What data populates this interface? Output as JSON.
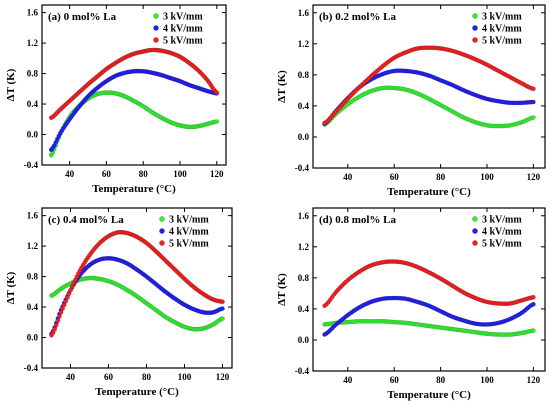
{
  "colors": {
    "3 kV/mm": "#33ee33",
    "4 kV/mm": "#2222ee",
    "5 kV/mm": "#ee2222"
  },
  "chart_data": [
    {
      "type": "scatter",
      "title": "(a) 0 mol% La",
      "xlabel": "Temperature (°C)",
      "ylabel": "ΔT (K)",
      "xlim": [
        25,
        125
      ],
      "ylim": [
        -0.4,
        1.7
      ],
      "xticks": [
        40,
        60,
        80,
        100,
        120
      ],
      "yticks": [
        -0.4,
        0.0,
        0.4,
        0.8,
        1.2,
        1.6
      ],
      "legend": "top-right",
      "series": [
        {
          "name": "3 kV/mm",
          "x": [
            30,
            35,
            40,
            45,
            50,
            55,
            60,
            65,
            70,
            75,
            80,
            85,
            90,
            95,
            100,
            105,
            110,
            115,
            120
          ],
          "y": [
            -0.27,
            0.01,
            0.23,
            0.37,
            0.47,
            0.53,
            0.55,
            0.54,
            0.5,
            0.44,
            0.37,
            0.29,
            0.22,
            0.16,
            0.12,
            0.1,
            0.11,
            0.14,
            0.17
          ]
        },
        {
          "name": "4 kV/mm",
          "x": [
            30,
            35,
            40,
            45,
            50,
            55,
            60,
            65,
            70,
            75,
            80,
            85,
            90,
            95,
            100,
            105,
            110,
            115,
            120
          ],
          "y": [
            -0.2,
            0.02,
            0.2,
            0.36,
            0.5,
            0.61,
            0.7,
            0.77,
            0.81,
            0.83,
            0.83,
            0.81,
            0.78,
            0.74,
            0.7,
            0.65,
            0.61,
            0.57,
            0.54
          ]
        },
        {
          "name": "5 kV/mm",
          "x": [
            30,
            35,
            40,
            45,
            50,
            55,
            60,
            65,
            70,
            75,
            80,
            85,
            90,
            95,
            100,
            105,
            110,
            115,
            120
          ],
          "y": [
            0.22,
            0.33,
            0.44,
            0.55,
            0.66,
            0.76,
            0.86,
            0.94,
            1.01,
            1.06,
            1.09,
            1.11,
            1.1,
            1.07,
            1.02,
            0.94,
            0.84,
            0.71,
            0.55
          ]
        }
      ]
    },
    {
      "type": "scatter",
      "title": "(b) 0.2 mol% La",
      "xlabel": "Temperature (°C)",
      "ylabel": "ΔT (K)",
      "xlim": [
        25,
        125
      ],
      "ylim": [
        -0.4,
        1.7
      ],
      "xticks": [
        40,
        60,
        80,
        100,
        120
      ],
      "yticks": [
        -0.4,
        0.0,
        0.4,
        0.8,
        1.2,
        1.6
      ],
      "legend": "top-right",
      "series": [
        {
          "name": "3 kV/mm",
          "x": [
            30,
            35,
            40,
            45,
            50,
            55,
            60,
            65,
            70,
            75,
            80,
            85,
            90,
            95,
            100,
            105,
            110,
            115,
            120
          ],
          "y": [
            0.16,
            0.3,
            0.42,
            0.52,
            0.59,
            0.63,
            0.63,
            0.61,
            0.56,
            0.49,
            0.41,
            0.33,
            0.25,
            0.19,
            0.15,
            0.14,
            0.15,
            0.19,
            0.25
          ]
        },
        {
          "name": "4 kV/mm",
          "x": [
            30,
            35,
            40,
            45,
            50,
            55,
            60,
            65,
            70,
            75,
            80,
            85,
            90,
            95,
            100,
            105,
            110,
            115,
            120
          ],
          "y": [
            0.17,
            0.34,
            0.5,
            0.64,
            0.74,
            0.81,
            0.85,
            0.85,
            0.83,
            0.79,
            0.73,
            0.67,
            0.6,
            0.54,
            0.49,
            0.46,
            0.44,
            0.44,
            0.45
          ]
        },
        {
          "name": "5 kV/mm",
          "x": [
            30,
            35,
            40,
            45,
            50,
            55,
            60,
            65,
            70,
            75,
            80,
            85,
            90,
            95,
            100,
            105,
            110,
            115,
            120
          ],
          "y": [
            0.18,
            0.33,
            0.49,
            0.64,
            0.78,
            0.91,
            1.02,
            1.09,
            1.14,
            1.15,
            1.14,
            1.11,
            1.06,
            1.0,
            0.93,
            0.85,
            0.77,
            0.69,
            0.62
          ]
        }
      ]
    },
    {
      "type": "scatter",
      "title": "(c) 0.4 mol% La",
      "xlabel": "Temperature (°C)",
      "ylabel": "ΔT (K)",
      "xlim": [
        25,
        125
      ],
      "ylim": [
        -0.4,
        1.7
      ],
      "xticks": [
        40,
        60,
        80,
        100,
        120
      ],
      "yticks": [
        -0.4,
        0.0,
        0.4,
        0.8,
        1.2,
        1.6
      ],
      "legend": "top-right",
      "series": [
        {
          "name": "3 kV/mm",
          "x": [
            30,
            35,
            40,
            45,
            50,
            55,
            60,
            65,
            70,
            75,
            80,
            85,
            90,
            95,
            100,
            105,
            110,
            115,
            120
          ],
          "y": [
            0.55,
            0.64,
            0.71,
            0.76,
            0.78,
            0.77,
            0.74,
            0.69,
            0.62,
            0.54,
            0.45,
            0.36,
            0.27,
            0.2,
            0.14,
            0.11,
            0.12,
            0.17,
            0.25
          ]
        },
        {
          "name": "4 kV/mm",
          "x": [
            30,
            35,
            40,
            45,
            50,
            55,
            60,
            65,
            70,
            75,
            80,
            85,
            90,
            95,
            100,
            105,
            110,
            115,
            120
          ],
          "y": [
            0.05,
            0.36,
            0.62,
            0.82,
            0.95,
            1.02,
            1.04,
            1.02,
            0.97,
            0.89,
            0.8,
            0.7,
            0.6,
            0.51,
            0.43,
            0.37,
            0.33,
            0.33,
            0.38
          ]
        },
        {
          "name": "5 kV/mm",
          "x": [
            30,
            35,
            40,
            45,
            50,
            55,
            60,
            65,
            70,
            75,
            80,
            85,
            90,
            95,
            100,
            105,
            110,
            115,
            120
          ],
          "y": [
            0.03,
            0.33,
            0.62,
            0.88,
            1.08,
            1.23,
            1.33,
            1.38,
            1.37,
            1.32,
            1.24,
            1.13,
            1.01,
            0.89,
            0.77,
            0.66,
            0.57,
            0.5,
            0.47
          ]
        }
      ]
    },
    {
      "type": "scatter",
      "title": "(d) 0.8 mol% La",
      "xlabel": "Temperature (°C)",
      "ylabel": "ΔT (K)",
      "xlim": [
        25,
        125
      ],
      "ylim": [
        -0.4,
        1.7
      ],
      "xticks": [
        40,
        60,
        80,
        100,
        120
      ],
      "yticks": [
        -0.4,
        0.0,
        0.4,
        0.8,
        1.2,
        1.6
      ],
      "legend": "top-right",
      "series": [
        {
          "name": "3 kV/mm",
          "x": [
            30,
            35,
            40,
            45,
            50,
            55,
            60,
            65,
            70,
            75,
            80,
            85,
            90,
            95,
            100,
            105,
            110,
            115,
            120
          ],
          "y": [
            0.2,
            0.22,
            0.23,
            0.24,
            0.24,
            0.24,
            0.23,
            0.22,
            0.2,
            0.18,
            0.16,
            0.14,
            0.12,
            0.1,
            0.08,
            0.07,
            0.07,
            0.09,
            0.12
          ]
        },
        {
          "name": "4 kV/mm",
          "x": [
            30,
            35,
            40,
            45,
            50,
            55,
            60,
            65,
            70,
            75,
            80,
            85,
            90,
            95,
            100,
            105,
            110,
            115,
            120
          ],
          "y": [
            0.07,
            0.2,
            0.32,
            0.42,
            0.49,
            0.53,
            0.54,
            0.53,
            0.49,
            0.44,
            0.37,
            0.3,
            0.25,
            0.21,
            0.2,
            0.22,
            0.27,
            0.35,
            0.46
          ]
        },
        {
          "name": "5 kV/mm",
          "x": [
            30,
            35,
            40,
            45,
            50,
            55,
            60,
            65,
            70,
            75,
            80,
            85,
            90,
            95,
            100,
            105,
            110,
            115,
            120
          ],
          "y": [
            0.44,
            0.62,
            0.77,
            0.88,
            0.96,
            1.0,
            1.01,
            0.99,
            0.94,
            0.87,
            0.79,
            0.7,
            0.61,
            0.54,
            0.49,
            0.47,
            0.47,
            0.51,
            0.55
          ]
        }
      ]
    }
  ]
}
